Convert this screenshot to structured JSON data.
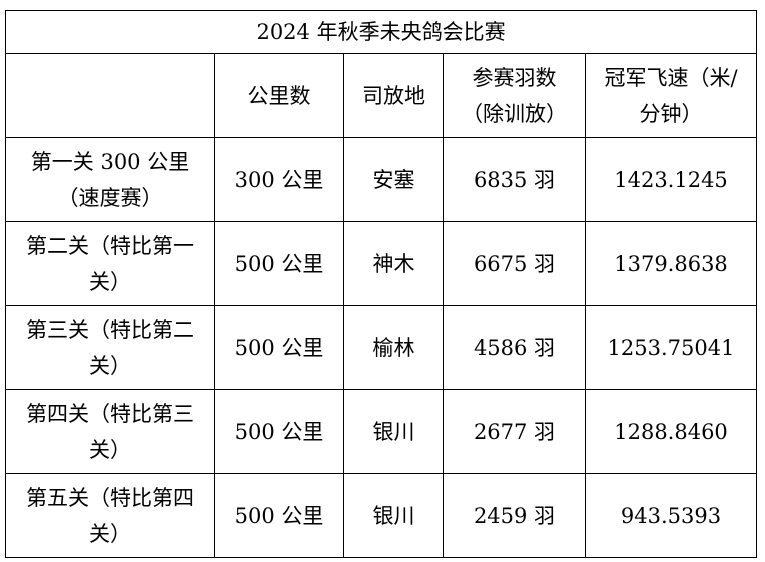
{
  "table": {
    "title": "2024 年秋季未央鸽会比赛",
    "header": [
      "",
      "公里数",
      "司放地",
      "参赛羽数（除训放）",
      "冠军飞速（米/分钟）"
    ],
    "rows": [
      [
        "第一关 300 公里（速度赛）",
        "300 公里",
        "安塞",
        "6835 羽",
        "1423.1245"
      ],
      [
        "第二关（特比第一关）",
        "500 公里",
        "神木",
        "6675 羽",
        "1379.8638"
      ],
      [
        "第三关（特比第二关）",
        "500 公里",
        "榆林",
        "4586 羽",
        "1253.75041"
      ],
      [
        "第四关（特比第三关）",
        "500 公里",
        "银川",
        "2677 羽",
        "1288.8460"
      ],
      [
        "第五关（特比第四关）",
        "500 公里",
        "银川",
        "2459 羽",
        "943.5393"
      ]
    ]
  }
}
